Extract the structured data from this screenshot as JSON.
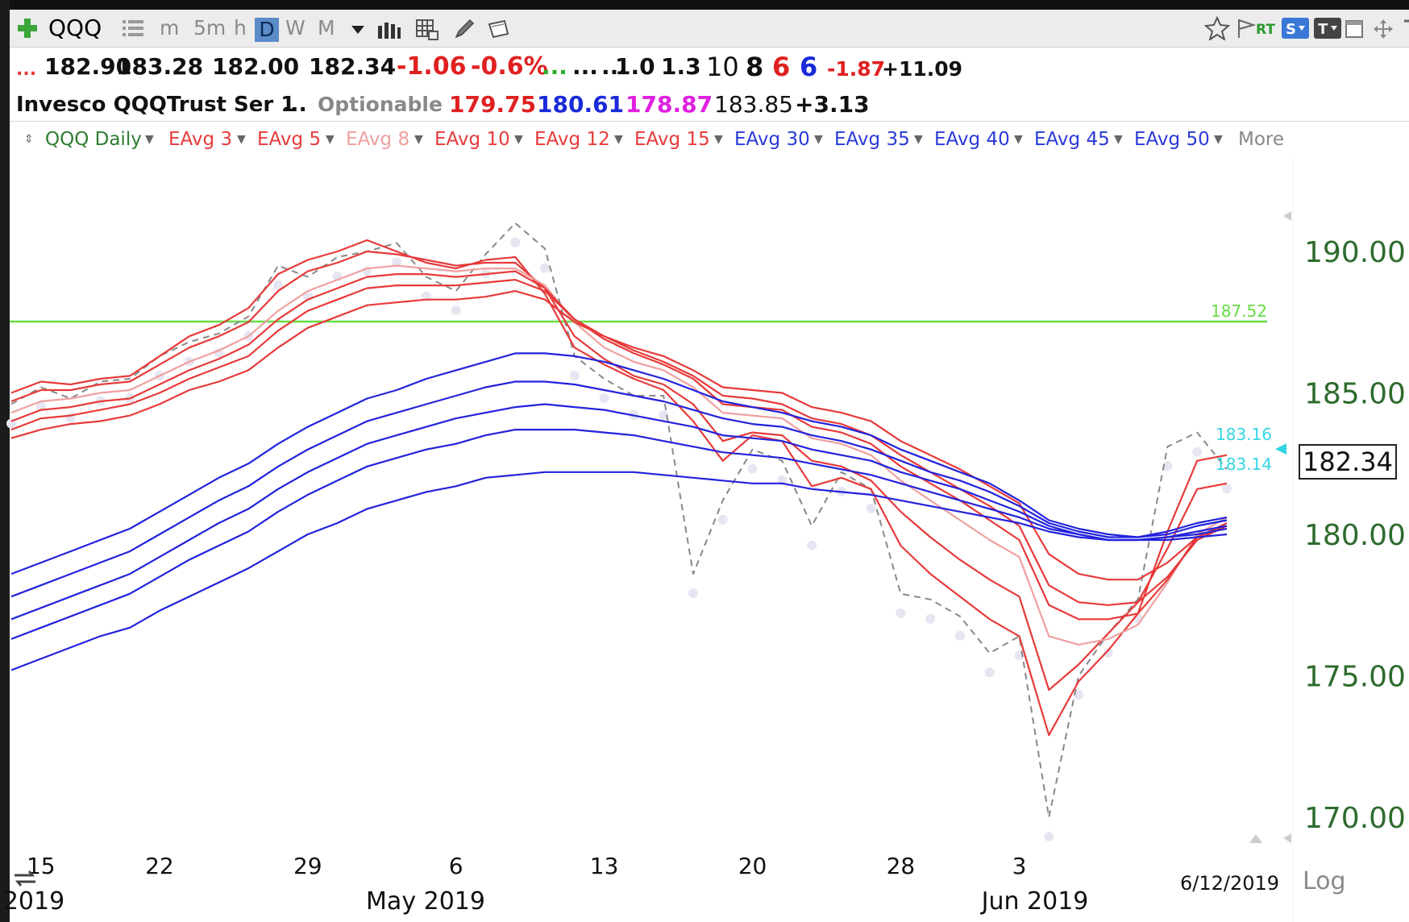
{
  "toolbar": {
    "symbol": "QQQ",
    "timeframes": [
      "m",
      "5m",
      "h",
      "D",
      "W",
      "M"
    ],
    "selected_timeframe": "D",
    "rt_label": "RT"
  },
  "quote_row1": {
    "prefix": "...",
    "open": "182.90",
    "high": "183.28",
    "low": "182.00",
    "close": "182.34",
    "change": "-1.06",
    "change_pct": "-0.6%",
    "dots1": "...",
    "dots2": "...",
    "dots3": "...",
    "val1": "1.0",
    "val2": "1.3",
    "val3": "10",
    "val4": "8",
    "val5": "6",
    "val6": "6",
    "val7": "-1.87",
    "val8": "+11.09"
  },
  "quote_row2": {
    "name": "Invesco QQQTrust Ser 1",
    "dots": "...",
    "optionable": "Optionable",
    "v1": "179.75",
    "v2": "180.61",
    "v3": "178.87",
    "v4": "183.85",
    "v5": "+3.13"
  },
  "legend": {
    "main": "QQQ Daily",
    "items": [
      "EAvg 3",
      "EAvg 5",
      "EAvg 8",
      "EAvg 10",
      "EAvg 12",
      "EAvg 15",
      "EAvg 30",
      "EAvg 35",
      "EAvg 40",
      "EAvg 45",
      "EAvg 50"
    ],
    "more": "More"
  },
  "colors": {
    "short_ema": "#e83a3a",
    "ema8": "#f0a0a0",
    "long_ema": "#2222dd",
    "price": "#888888",
    "hline": "#66dd44",
    "axis_text": "#2e6b2e",
    "marker": "#33d6e6"
  },
  "axis": {
    "log_label": "Log",
    "last_date": "6/12/2019",
    "current_price": "182.34"
  },
  "chart_data": {
    "type": "line",
    "title": "QQQ Daily",
    "y_ticks": [
      "190.00",
      "185.00",
      "180.00",
      "175.00",
      "170.00"
    ],
    "ylim": [
      169.0,
      192.5
    ],
    "x_tick_labels": [
      "15",
      "22",
      "29",
      "6",
      "13",
      "20",
      "28",
      "3"
    ],
    "month_labels": [
      "2019",
      "May 2019",
      "Jun 2019"
    ],
    "hline": {
      "value": 187.52,
      "label": "187.52"
    },
    "markers": [
      {
        "value": 183.16,
        "label": "183.16"
      },
      {
        "value": 183.14,
        "label": "183.14"
      }
    ],
    "dates": [
      "2019-04-12",
      "2019-04-15",
      "2019-04-16",
      "2019-04-17",
      "2019-04-18",
      "2019-04-22",
      "2019-04-23",
      "2019-04-24",
      "2019-04-25",
      "2019-04-26",
      "2019-04-29",
      "2019-04-30",
      "2019-05-01",
      "2019-05-02",
      "2019-05-03",
      "2019-05-06",
      "2019-05-07",
      "2019-05-08",
      "2019-05-09",
      "2019-05-10",
      "2019-05-13",
      "2019-05-14",
      "2019-05-15",
      "2019-05-16",
      "2019-05-17",
      "2019-05-20",
      "2019-05-21",
      "2019-05-22",
      "2019-05-23",
      "2019-05-24",
      "2019-05-28",
      "2019-05-29",
      "2019-05-30",
      "2019-05-31",
      "2019-06-03",
      "2019-06-04",
      "2019-06-05",
      "2019-06-06",
      "2019-06-07",
      "2019-06-10",
      "2019-06-11",
      "2019-06-12"
    ],
    "series": [
      {
        "name": "QQQ",
        "style": "dashed",
        "color": "#888888",
        "values": [
          184.6,
          185.2,
          184.8,
          185.4,
          185.5,
          186.3,
          186.8,
          187.1,
          187.7,
          189.5,
          189.1,
          189.8,
          190.0,
          190.3,
          189.1,
          188.6,
          189.9,
          191.0,
          190.1,
          186.3,
          185.5,
          184.9,
          184.9,
          178.6,
          181.2,
          183.0,
          182.6,
          180.3,
          182.2,
          181.6,
          177.9,
          177.7,
          177.1,
          175.8,
          176.4,
          170.0,
          175.0,
          176.5,
          177.7,
          183.1,
          183.6,
          182.3
        ]
      },
      {
        "name": "EAvg 3",
        "color": "#e83a3a",
        "values": [
          185.0,
          185.4,
          185.3,
          185.5,
          185.6,
          186.3,
          187.0,
          187.4,
          188.0,
          189.2,
          189.7,
          190.0,
          190.4,
          190.0,
          189.6,
          189.4,
          189.7,
          189.8,
          188.5,
          186.6,
          186.0,
          185.5,
          185.1,
          184.0,
          182.6,
          183.5,
          183.3,
          181.7,
          182.0,
          181.6,
          179.6,
          178.6,
          177.8,
          177.0,
          176.4,
          172.9,
          174.8,
          175.9,
          177.2,
          180.1,
          182.6,
          182.8
        ]
      },
      {
        "name": "EAvg 5",
        "color": "#e83a3a",
        "values": [
          184.7,
          185.1,
          185.1,
          185.3,
          185.4,
          186.0,
          186.6,
          187.0,
          187.5,
          188.6,
          189.3,
          189.6,
          190.0,
          189.9,
          189.7,
          189.5,
          189.6,
          189.6,
          188.7,
          187.0,
          186.2,
          185.6,
          185.3,
          184.6,
          183.3,
          183.6,
          183.5,
          182.6,
          182.4,
          181.9,
          180.8,
          179.9,
          179.1,
          178.4,
          177.8,
          174.5,
          175.4,
          176.5,
          177.6,
          179.5,
          181.6,
          181.8
        ]
      },
      {
        "name": "EAvg 8",
        "color": "#f0a0a0",
        "values": [
          184.3,
          184.7,
          184.8,
          185.0,
          185.1,
          185.6,
          186.1,
          186.5,
          187.0,
          187.9,
          188.6,
          189.0,
          189.4,
          189.5,
          189.4,
          189.3,
          189.4,
          189.4,
          188.8,
          187.5,
          186.6,
          186.1,
          185.8,
          185.2,
          184.3,
          184.2,
          184.1,
          183.4,
          183.2,
          182.8,
          181.9,
          181.2,
          180.5,
          179.8,
          179.2,
          176.4,
          176.1,
          176.3,
          176.8,
          178.3,
          180.0,
          180.6
        ]
      },
      {
        "name": "EAvg 10",
        "color": "#e83a3a",
        "values": [
          184.0,
          184.4,
          184.5,
          184.7,
          184.8,
          185.3,
          185.8,
          186.2,
          186.7,
          187.6,
          188.3,
          188.7,
          189.1,
          189.2,
          189.2,
          189.1,
          189.2,
          189.3,
          188.7,
          187.6,
          186.9,
          186.4,
          186.0,
          185.5,
          184.6,
          184.5,
          184.4,
          183.8,
          183.6,
          183.2,
          182.4,
          181.8,
          181.2,
          180.5,
          179.8,
          177.5,
          177.0,
          177.0,
          177.2,
          178.4,
          179.9,
          180.4
        ]
      },
      {
        "name": "EAvg 12",
        "color": "#e83a3a",
        "values": [
          183.7,
          184.1,
          184.2,
          184.4,
          184.6,
          185.0,
          185.5,
          185.9,
          186.3,
          187.2,
          187.9,
          188.3,
          188.7,
          188.8,
          188.8,
          188.8,
          188.9,
          189.0,
          188.6,
          187.6,
          187.0,
          186.5,
          186.1,
          185.6,
          184.9,
          184.8,
          184.6,
          184.1,
          183.9,
          183.5,
          182.8,
          182.2,
          181.6,
          181.0,
          180.3,
          178.2,
          177.6,
          177.5,
          177.6,
          178.5,
          179.8,
          180.3
        ]
      },
      {
        "name": "EAvg 15",
        "color": "#e83a3a",
        "values": [
          183.4,
          183.7,
          183.9,
          184.0,
          184.2,
          184.6,
          185.1,
          185.4,
          185.8,
          186.6,
          187.3,
          187.7,
          188.1,
          188.2,
          188.3,
          188.3,
          188.4,
          188.6,
          188.3,
          187.5,
          187.0,
          186.6,
          186.3,
          185.8,
          185.2,
          185.1,
          185.0,
          184.5,
          184.3,
          184.0,
          183.3,
          182.8,
          182.3,
          181.7,
          181.1,
          179.3,
          178.6,
          178.4,
          178.4,
          179.0,
          179.9,
          180.3
        ]
      },
      {
        "name": "EAvg 30",
        "color": "#2222dd",
        "values": [
          178.6,
          179.0,
          179.4,
          179.8,
          180.2,
          180.8,
          181.4,
          182.0,
          182.5,
          183.2,
          183.8,
          184.3,
          184.8,
          185.1,
          185.5,
          185.8,
          186.1,
          186.4,
          186.4,
          186.3,
          186.1,
          185.8,
          185.5,
          185.1,
          184.7,
          184.5,
          184.3,
          184.0,
          183.8,
          183.5,
          183.0,
          182.6,
          182.2,
          181.8,
          181.2,
          180.5,
          180.2,
          180.0,
          179.9,
          180.1,
          180.4,
          180.6
        ]
      },
      {
        "name": "EAvg 35",
        "color": "#2222dd",
        "values": [
          177.8,
          178.2,
          178.6,
          179.0,
          179.4,
          180.0,
          180.6,
          181.2,
          181.7,
          182.4,
          183.0,
          183.5,
          184.0,
          184.3,
          184.6,
          184.9,
          185.2,
          185.4,
          185.4,
          185.3,
          185.1,
          184.9,
          184.7,
          184.4,
          184.1,
          183.9,
          183.8,
          183.5,
          183.3,
          183.0,
          182.6,
          182.2,
          181.9,
          181.5,
          181.0,
          180.4,
          180.1,
          179.9,
          179.9,
          180.0,
          180.3,
          180.5
        ]
      },
      {
        "name": "EAvg 40",
        "color": "#2222dd",
        "values": [
          177.0,
          177.4,
          177.8,
          178.2,
          178.6,
          179.2,
          179.8,
          180.4,
          180.9,
          181.6,
          182.2,
          182.7,
          183.2,
          183.5,
          183.8,
          184.1,
          184.3,
          184.5,
          184.6,
          184.5,
          184.4,
          184.2,
          184.0,
          183.8,
          183.5,
          183.4,
          183.3,
          183.0,
          182.8,
          182.6,
          182.2,
          181.9,
          181.6,
          181.2,
          180.8,
          180.3,
          180.0,
          179.8,
          179.8,
          179.9,
          180.1,
          180.3
        ]
      },
      {
        "name": "EAvg 45",
        "color": "#2222dd",
        "values": [
          176.3,
          176.7,
          177.1,
          177.5,
          177.9,
          178.5,
          179.1,
          179.6,
          180.1,
          180.8,
          181.4,
          181.9,
          182.4,
          182.7,
          183.0,
          183.2,
          183.5,
          183.7,
          183.7,
          183.7,
          183.6,
          183.5,
          183.3,
          183.1,
          182.9,
          182.8,
          182.7,
          182.5,
          182.3,
          182.1,
          181.8,
          181.5,
          181.2,
          180.9,
          180.6,
          180.2,
          180.0,
          179.8,
          179.8,
          179.9,
          180.0,
          180.2
        ]
      },
      {
        "name": "EAvg 50",
        "color": "#2222dd",
        "values": [
          175.2,
          175.6,
          176.0,
          176.4,
          176.7,
          177.3,
          177.8,
          178.3,
          178.8,
          179.4,
          180.0,
          180.4,
          180.9,
          181.2,
          181.5,
          181.7,
          182.0,
          182.1,
          182.2,
          182.2,
          182.2,
          182.2,
          182.1,
          182.0,
          181.9,
          181.8,
          181.8,
          181.6,
          181.5,
          181.4,
          181.2,
          181.0,
          180.8,
          180.6,
          180.4,
          180.1,
          179.9,
          179.8,
          179.8,
          179.8,
          179.9,
          180.0
        ]
      }
    ]
  }
}
